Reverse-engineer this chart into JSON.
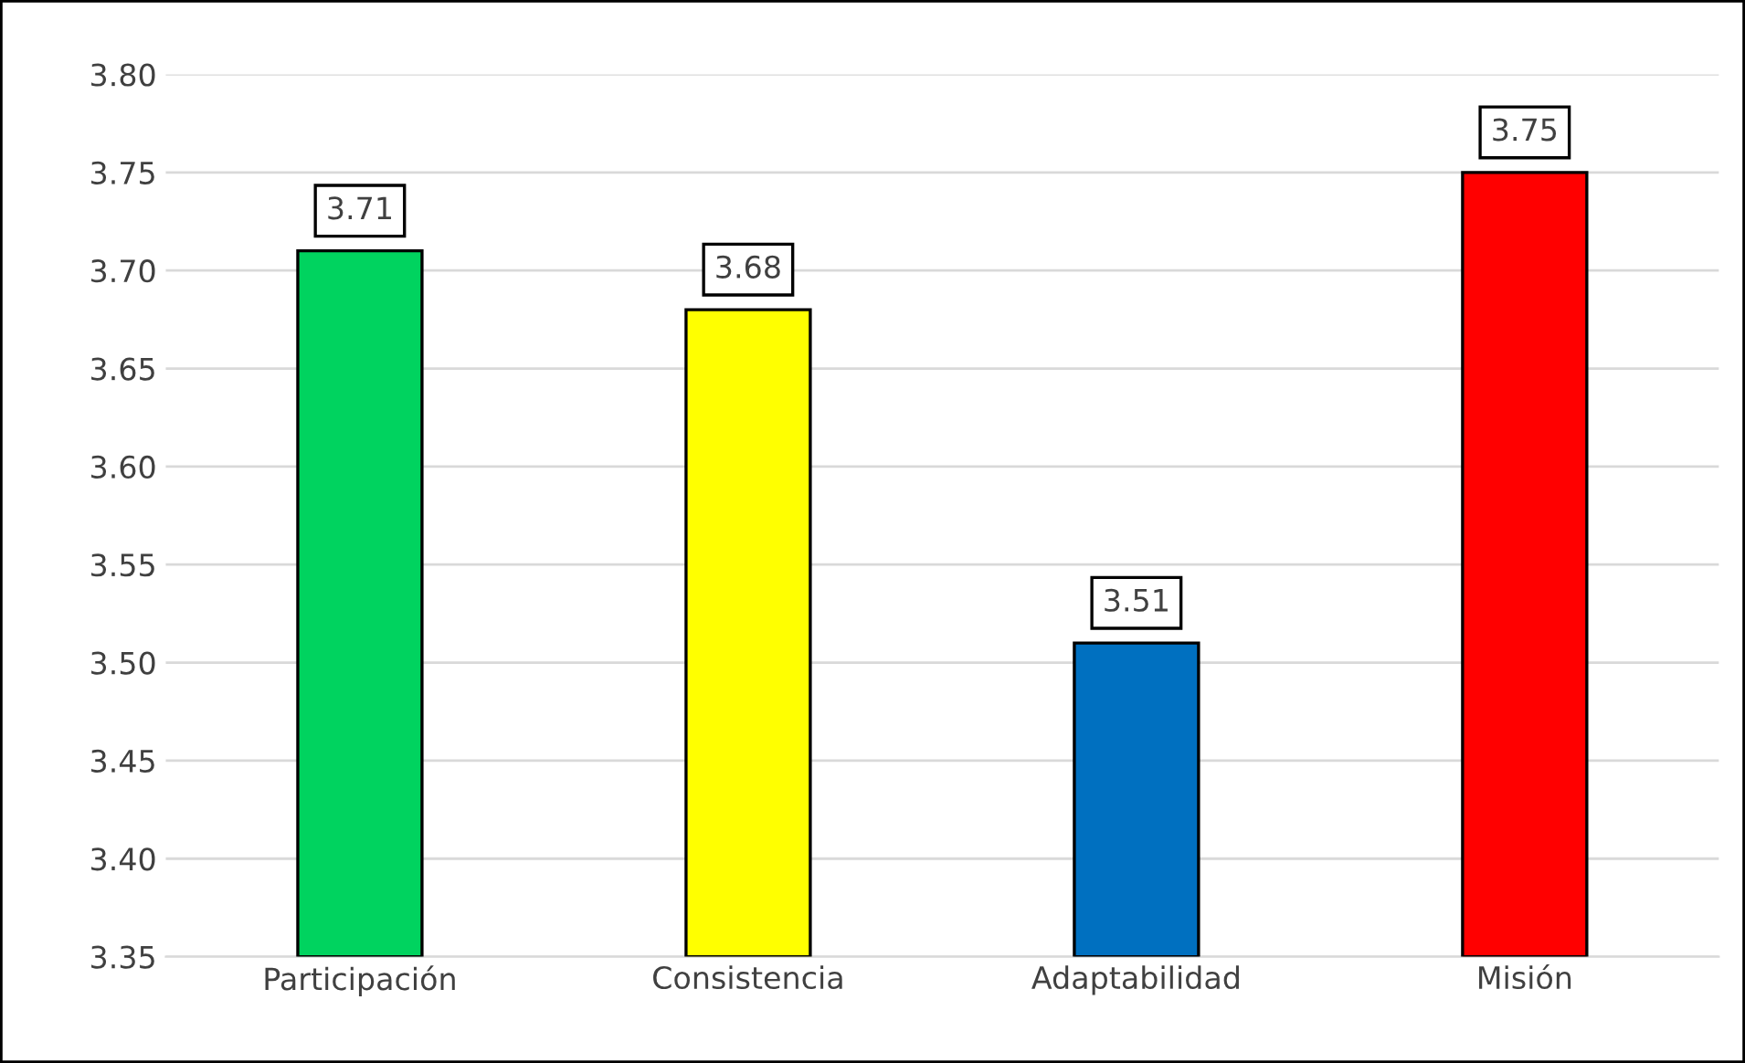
{
  "chart_data": {
    "type": "bar",
    "categories": [
      "Participación",
      "Consistencia",
      "Adaptabilidad",
      "Misión"
    ],
    "values": [
      3.71,
      3.68,
      3.51,
      3.75
    ],
    "colors": [
      "#00d35f",
      "#ffff00",
      "#0070c0",
      "#ff0000"
    ],
    "ylim": [
      3.35,
      3.8
    ],
    "yticks": [
      {
        "value": 3.35,
        "label": "3.35"
      },
      {
        "value": 3.4,
        "label": "3.40"
      },
      {
        "value": 3.45,
        "label": "3.45"
      },
      {
        "value": 3.5,
        "label": "3.50"
      },
      {
        "value": 3.55,
        "label": "3.55"
      },
      {
        "value": 3.6,
        "label": "3.60"
      },
      {
        "value": 3.65,
        "label": "3.65"
      },
      {
        "value": 3.7,
        "label": "3.70"
      },
      {
        "value": 3.75,
        "label": "3.75"
      },
      {
        "value": 3.8,
        "label": "3.80"
      }
    ],
    "grid": "y",
    "data_labels": true,
    "legend": false
  }
}
